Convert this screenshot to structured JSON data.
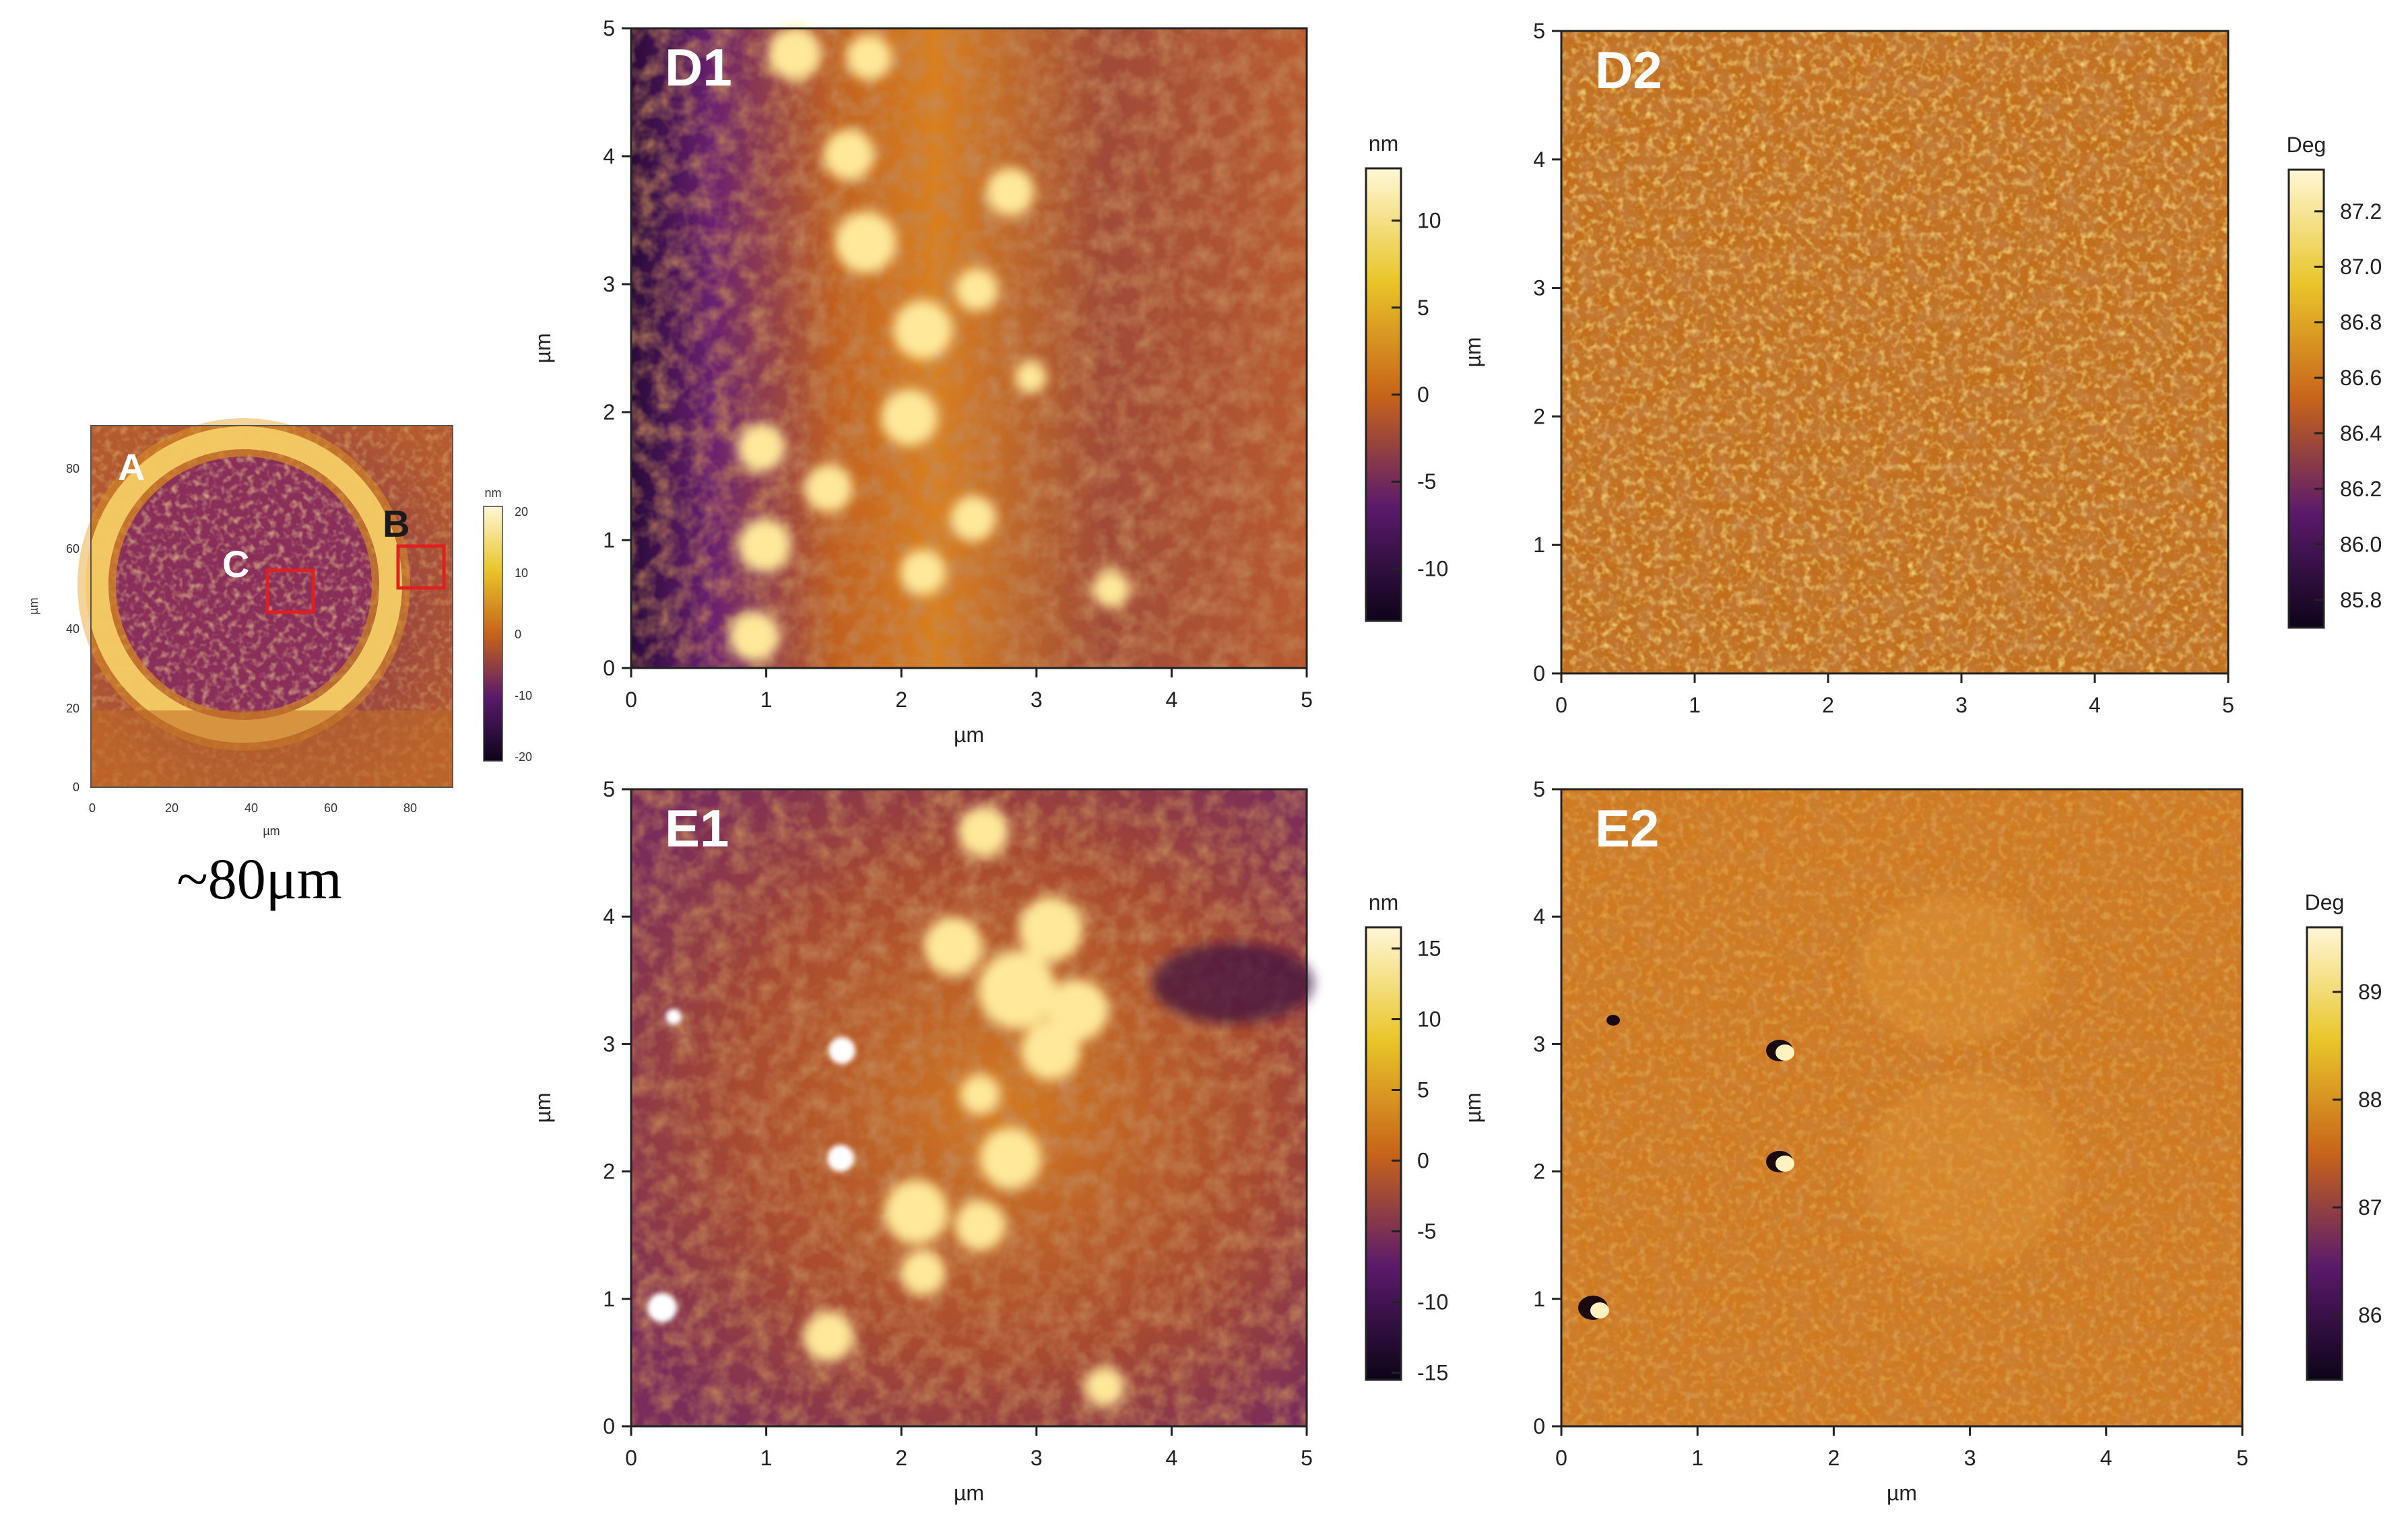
{
  "overview": {
    "axis_unit": "µm",
    "ticks": [
      "0",
      "20",
      "40",
      "60",
      "80"
    ],
    "colorbar_unit": "nm",
    "colorbar_ticks": [
      "20",
      "10",
      "0",
      "-10",
      "-20"
    ],
    "labels": {
      "a": "A",
      "b": "B",
      "c": "C"
    },
    "size_caption": "~80μm"
  },
  "panels": [
    {
      "label": "D1",
      "xlabel": "µm",
      "ylabel": "µm",
      "xticks": [
        "0",
        "1",
        "2",
        "3",
        "4",
        "5"
      ],
      "yticks": [
        "0",
        "1",
        "2",
        "3",
        "4",
        "5"
      ],
      "colorbar_unit": "nm",
      "colorbar_ticks": [
        "10",
        "5",
        "0",
        "-5",
        "-10"
      ]
    },
    {
      "label": "D2",
      "xlabel": "",
      "ylabel": "µm",
      "xticks": [
        "0",
        "1",
        "2",
        "3",
        "4",
        "5"
      ],
      "yticks": [
        "0",
        "1",
        "2",
        "3",
        "4",
        "5"
      ],
      "colorbar_unit": "Deg",
      "colorbar_ticks": [
        "87.2",
        "87.0",
        "86.8",
        "86.6",
        "86.4",
        "86.2",
        "86.0",
        "85.8"
      ]
    },
    {
      "label": "E1",
      "xlabel": "µm",
      "ylabel": "µm",
      "xticks": [
        "0",
        "1",
        "2",
        "3",
        "4",
        "5"
      ],
      "yticks": [
        "0",
        "1",
        "2",
        "3",
        "4",
        "5"
      ],
      "colorbar_unit": "nm",
      "colorbar_ticks": [
        "15",
        "10",
        "5",
        "0",
        "-5",
        "-10",
        "-15"
      ]
    },
    {
      "label": "E2",
      "xlabel": "µm",
      "ylabel": "µm",
      "xticks": [
        "0",
        "1",
        "2",
        "3",
        "4",
        "5"
      ],
      "yticks": [
        "0",
        "1",
        "2",
        "3",
        "4",
        "5"
      ],
      "colorbar_unit": "Deg",
      "colorbar_ticks": [
        "89",
        "88",
        "87",
        "86"
      ]
    }
  ],
  "colors": {
    "afm_dark": "#0d0419",
    "afm_purple": "#5a1a6b",
    "afm_orange": "#c7641a",
    "afm_yellow": "#e9c52a",
    "afm_light": "#fff7d6",
    "roi_box": "#e02020"
  }
}
